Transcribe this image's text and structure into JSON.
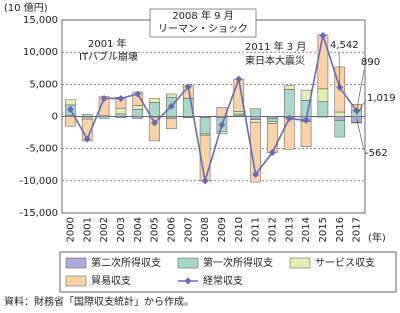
{
  "chart_data": {
    "type": "bar-line",
    "y_label": "(10 億円)",
    "x_label": "(年)",
    "source": "資料：財務省「国際収支統計」から作成。",
    "categories": [
      "2000",
      "2001",
      "2002",
      "2003",
      "2004",
      "2005",
      "2006",
      "2007",
      "2008",
      "2009",
      "2010",
      "2011",
      "2012",
      "2013",
      "2014",
      "2015",
      "2016",
      "2017"
    ],
    "ylim": [
      -15000,
      15000
    ],
    "yticks": [
      {
        "value": -15000,
        "label": "-15,000"
      },
      {
        "value": -10000,
        "label": "-10,000"
      },
      {
        "value": -5000,
        "label": "-5,000"
      },
      0,
      {
        "value": 5000,
        "label": "5,000"
      },
      {
        "value": 10000,
        "label": "10,000"
      },
      {
        "value": 15000,
        "label": "15,000"
      }
    ],
    "grid": true,
    "series": [
      {
        "name": "第二次所得収支",
        "color": "#a9a9dc",
        "values": [
          200,
          -100,
          0,
          -200,
          -300,
          -100,
          -300,
          -100,
          -200,
          -200,
          100,
          -500,
          -300,
          -200,
          -800,
          -100,
          -600,
          -900
        ]
      },
      {
        "name": "第一次所得収支",
        "color": "#a8d8c8",
        "values": [
          1600,
          300,
          -300,
          400,
          1100,
          2200,
          3000,
          2800,
          -2500,
          -2100,
          300,
          1200,
          -500,
          4200,
          2500,
          2300,
          -2600,
          1000
        ]
      },
      {
        "name": "サービス収支",
        "color": "#e2eeb4",
        "values": [
          800,
          -300,
          200,
          900,
          600,
          600,
          500,
          -100,
          -200,
          -400,
          400,
          -400,
          -300,
          600,
          1600,
          2000,
          700,
          -100
        ]
      },
      {
        "name": "貿易収支",
        "color": "#f9d2a8",
        "values": [
          -1500,
          -3400,
          2900,
          1700,
          2100,
          -3700,
          -1600,
          2000,
          -7100,
          1400,
          5000,
          -9300,
          -4500,
          -4900,
          -3900,
          8400,
          7000,
          900
        ]
      },
      {
        "name": "経常収支",
        "type": "line",
        "color": "#6a6ab4",
        "values": [
          1100,
          -3500,
          2800,
          2800,
          3500,
          -1000,
          1600,
          4600,
          -10000,
          -1300,
          5800,
          -9000,
          -5600,
          -300,
          -600,
          12600,
          4500,
          900
        ],
        "value_labels": [
          null,
          null,
          null,
          null,
          null,
          null,
          null,
          null,
          null,
          null,
          null,
          null,
          null,
          null,
          null,
          null,
          "4,542",
          "890"
        ]
      }
    ],
    "annotations": [
      "2001 年",
      "ITバブル崩壊",
      "2008 年 9 月",
      "リーマン・ショック",
      "2011 年 3 月",
      "東日本大震災",
      "1,019",
      "-562"
    ]
  }
}
